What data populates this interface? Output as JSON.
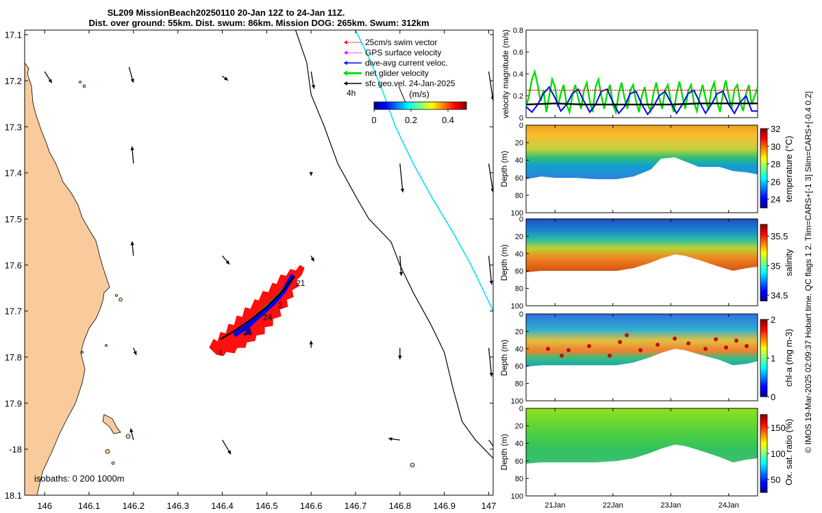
{
  "title": {
    "line1": "SL209 MissionBeach20250110 20-Jan 12Z to 24-Jan 11Z.",
    "line2": "Dist. over ground: 55km. Dist. swum: 86km. Mission DOG: 265km. Swum: 312km"
  },
  "side_note": "© IMOS 19-Mar-2025 02:09:37 Hobart time. QC flags 1  2. Tlim=CARS+[-1 3] Slim=CARS+[-0.4 0.2]",
  "colors": {
    "land": "#f9cb9c",
    "swim_vector": "#ff0000",
    "gps_velocity": "#ff00ff",
    "dive_current": "#0000ff",
    "net_velocity": "#00dd00",
    "geo_velocity": "#000000",
    "isobath_200": "#000000",
    "isobath_1000": "#00e5ee"
  },
  "chart_data": [
    {
      "type": "map",
      "title": "SL209 MissionBeach20250110 20-Jan 12Z to 24-Jan 11Z.",
      "xlabel": "",
      "ylabel": "",
      "xlim": [
        145.955,
        147.01
      ],
      "ylim": [
        -18.1,
        -17.09
      ],
      "x_ticks": [
        146,
        146.1,
        146.2,
        146.3,
        146.4,
        146.5,
        146.6,
        146.7,
        146.8,
        146.9,
        147
      ],
      "x_tick_labels": [
        "146",
        "146.1",
        "146.2",
        "146.3",
        "146.4",
        "146.5",
        "146.6",
        "146.7",
        "146.8",
        "146.9",
        "147"
      ],
      "y_ticks": [
        -17.1,
        -17.2,
        -17.3,
        -17.4,
        -17.5,
        -17.6,
        -17.7,
        -17.8,
        -17.9,
        -18,
        -18.1
      ],
      "y_tick_labels": [
        "17.1",
        "17.2",
        "17.3",
        "17.4",
        "17.5",
        "17.6",
        "17.7",
        "17.8",
        "17.9",
        "-18",
        "18.1"
      ],
      "legend": {
        "placement": "top-right",
        "entries": [
          "25cm/s swim vector",
          "GPS surface velocity",
          "dive-avg current veloc.",
          "net glider velocity",
          "sfc geo.vel. 24-Jan-2025"
        ],
        "sub_label": "4h"
      },
      "colorbar": {
        "label": "(m/s)",
        "range": [
          0,
          0.5
        ],
        "ticks": [
          "0",
          "0.2",
          "0.4"
        ]
      },
      "isobaths_label": "isobaths: 0   200   1000m",
      "isobath_200": [
        [
          146.565,
          -17.09
        ],
        [
          146.59,
          -17.16
        ],
        [
          146.6,
          -17.23
        ],
        [
          146.63,
          -17.3
        ],
        [
          146.66,
          -17.38
        ],
        [
          146.7,
          -17.45
        ],
        [
          146.73,
          -17.5
        ],
        [
          146.78,
          -17.55
        ],
        [
          146.8,
          -17.6
        ],
        [
          146.83,
          -17.66
        ],
        [
          146.87,
          -17.73
        ],
        [
          146.9,
          -17.79
        ],
        [
          146.92,
          -17.87
        ],
        [
          146.94,
          -17.94
        ],
        [
          146.97,
          -17.98
        ],
        [
          147.01,
          -18.02
        ]
      ],
      "isobath_1000": [
        [
          146.7,
          -17.09
        ],
        [
          146.73,
          -17.15
        ],
        [
          146.76,
          -17.22
        ],
        [
          146.79,
          -17.3
        ],
        [
          146.83,
          -17.38
        ],
        [
          146.87,
          -17.45
        ],
        [
          146.92,
          -17.53
        ],
        [
          146.96,
          -17.6
        ],
        [
          147.0,
          -17.68
        ],
        [
          147.01,
          -17.7
        ]
      ],
      "track_start": [
        146.39,
        -17.77
      ],
      "track_end": [
        146.58,
        -17.62
      ],
      "day_labels": [
        {
          "text": "21",
          "lon": 146.59,
          "lat": -17.64
        },
        {
          "text": "2",
          "lon": 146.55,
          "lat": -17.7
        },
        {
          "text": "24",
          "lon": 146.5,
          "lat": -17.73
        },
        {
          "text": "25",
          "lon": 146.44,
          "lat": -17.755
        }
      ],
      "geo_vectors": [
        {
          "lon": 146.0,
          "lat": -17.18,
          "u": 0.05,
          "v": -0.08
        },
        {
          "lon": 146.19,
          "lat": -17.17,
          "u": 0.03,
          "v": -0.11
        },
        {
          "lon": 146.4,
          "lat": -17.19,
          "u": 0.04,
          "v": -0.03
        },
        {
          "lon": 146.6,
          "lat": -17.18,
          "u": 0.02,
          "v": -0.12
        },
        {
          "lon": 147.0,
          "lat": -17.18,
          "u": 0.03,
          "v": -0.2
        },
        {
          "lon": 146.2,
          "lat": -17.38,
          "u": -0.01,
          "v": 0.12
        },
        {
          "lon": 146.6,
          "lat": -17.4,
          "u": 0.0,
          "v": -0.02
        },
        {
          "lon": 146.8,
          "lat": -17.38,
          "u": 0.02,
          "v": -0.2
        },
        {
          "lon": 147.0,
          "lat": -17.38,
          "u": 0.03,
          "v": -0.2
        },
        {
          "lon": 146.2,
          "lat": -17.58,
          "u": -0.01,
          "v": 0.1
        },
        {
          "lon": 146.4,
          "lat": -17.58,
          "u": 0.05,
          "v": -0.06
        },
        {
          "lon": 146.6,
          "lat": -17.58,
          "u": 0.02,
          "v": -0.04
        },
        {
          "lon": 146.8,
          "lat": -17.58,
          "u": 0.01,
          "v": -0.14
        },
        {
          "lon": 147.0,
          "lat": -17.58,
          "u": 0.02,
          "v": -0.2
        },
        {
          "lon": 146.2,
          "lat": -17.78,
          "u": 0.02,
          "v": -0.05
        },
        {
          "lon": 146.6,
          "lat": -17.78,
          "u": 0.0,
          "v": 0.05
        },
        {
          "lon": 146.8,
          "lat": -17.78,
          "u": 0.0,
          "v": -0.08
        },
        {
          "lon": 147.0,
          "lat": -17.78,
          "u": 0.02,
          "v": -0.2
        },
        {
          "lon": 146.2,
          "lat": -17.98,
          "u": -0.02,
          "v": 0.08
        },
        {
          "lon": 146.4,
          "lat": -17.98,
          "u": 0.06,
          "v": -0.1
        },
        {
          "lon": 146.8,
          "lat": -17.98,
          "u": -0.08,
          "v": 0.01
        },
        {
          "lon": 147.0,
          "lat": -17.98,
          "u": 0.08,
          "v": -0.11
        }
      ]
    },
    {
      "type": "line",
      "ylabel": "velocity magnitude (m/s)",
      "ylim": [
        0,
        0.8
      ],
      "y_ticks": [
        0,
        0.2,
        0.4,
        0.6,
        0.8
      ],
      "y_tick_labels": [
        "0",
        "0.2",
        "0.4",
        "0.6",
        "0.8"
      ],
      "xlim": [
        20.5,
        24.5
      ],
      "series": [
        {
          "name": "net glider velocity",
          "x": [
            20.5,
            20.55,
            20.6,
            20.65,
            20.7,
            20.75,
            20.8,
            20.85,
            20.9,
            20.95,
            21.0,
            21.05,
            21.1,
            21.15,
            21.2,
            21.25,
            21.3,
            21.35,
            21.4,
            21.45,
            21.5,
            21.55,
            21.6,
            21.65,
            21.7,
            21.75,
            21.8,
            21.85,
            21.9,
            21.95,
            22.0,
            22.05,
            22.1,
            22.15,
            22.2,
            22.25,
            22.3,
            22.35,
            22.4,
            22.45,
            22.5,
            22.55,
            22.6,
            22.65,
            22.7,
            22.75,
            22.8,
            22.85,
            22.9,
            22.95,
            23.0,
            23.05,
            23.1,
            23.15,
            23.2,
            23.25,
            23.3,
            23.35,
            23.4,
            23.45,
            23.5,
            23.55,
            23.6,
            23.65,
            23.7,
            23.75,
            23.8,
            23.85,
            23.9,
            23.95,
            24.0,
            24.05,
            24.1,
            24.15,
            24.2,
            24.25,
            24.3,
            24.35,
            24.4,
            24.45,
            24.5
          ],
          "values": [
            0.1,
            0.2,
            0.35,
            0.42,
            0.3,
            0.15,
            0.25,
            0.05,
            0.2,
            0.35,
            0.28,
            0.1,
            0.22,
            0.3,
            0.12,
            0.05,
            0.2,
            0.3,
            0.18,
            0.08,
            0.25,
            0.32,
            0.15,
            0.05,
            0.28,
            0.35,
            0.2,
            0.08,
            0.22,
            0.3,
            0.12,
            0.05,
            0.22,
            0.32,
            0.18,
            0.08,
            0.25,
            0.3,
            0.15,
            0.05,
            0.2,
            0.28,
            0.12,
            0.06,
            0.22,
            0.32,
            0.18,
            0.08,
            0.25,
            0.3,
            0.15,
            0.05,
            0.22,
            0.33,
            0.2,
            0.08,
            0.24,
            0.3,
            0.14,
            0.06,
            0.2,
            0.3,
            0.18,
            0.07,
            0.25,
            0.32,
            0.15,
            0.05,
            0.22,
            0.34,
            0.2,
            0.08,
            0.26,
            0.3,
            0.14,
            0.06,
            0.22,
            0.3,
            0.12,
            0.2,
            0.28
          ]
        },
        {
          "name": "dive-avg current veloc.",
          "x": [
            20.5,
            20.6,
            20.7,
            20.8,
            20.9,
            21.0,
            21.1,
            21.2,
            21.3,
            21.4,
            21.5,
            21.6,
            21.7,
            21.8,
            21.9,
            22.0,
            22.1,
            22.2,
            22.3,
            22.4,
            22.5,
            22.6,
            22.7,
            22.8,
            22.9,
            23.0,
            23.1,
            23.2,
            23.3,
            23.4,
            23.5,
            23.6,
            23.7,
            23.8,
            23.9,
            24.0,
            24.1,
            24.2,
            24.3,
            24.4,
            24.5
          ],
          "values": [
            0.1,
            0.05,
            0.12,
            0.22,
            0.28,
            0.18,
            0.06,
            0.12,
            0.22,
            0.26,
            0.15,
            0.05,
            0.12,
            0.24,
            0.26,
            0.14,
            0.04,
            0.1,
            0.22,
            0.24,
            0.12,
            0.03,
            0.1,
            0.2,
            0.24,
            0.14,
            0.04,
            0.12,
            0.22,
            0.25,
            0.14,
            0.04,
            0.12,
            0.22,
            0.24,
            0.12,
            0.04,
            0.14,
            0.2,
            0.06,
            0.06
          ]
        },
        {
          "name": "sfc geo.vel.",
          "x": [
            20.5,
            21.0,
            21.5,
            22.0,
            22.5,
            23.0,
            23.5,
            24.0,
            24.5
          ],
          "values": [
            0.12,
            0.13,
            0.12,
            0.12,
            0.12,
            0.12,
            0.13,
            0.13,
            0.13
          ]
        },
        {
          "name": "25cm/s swim vector",
          "x": [
            20.5,
            24.5
          ],
          "values": [
            0.25,
            0.25
          ]
        }
      ]
    },
    {
      "type": "heatmap",
      "ylabel": "Depth (m)",
      "colorbar_label": "temperature (°C)",
      "ylim": [
        0,
        100
      ],
      "y_ticks": [
        0,
        20,
        40,
        60,
        80,
        100
      ],
      "y_tick_labels": [
        "0",
        "20",
        "40",
        "60",
        "80",
        "100"
      ],
      "clim": [
        23,
        32
      ],
      "colorbar_ticks": [
        "24",
        "26",
        "28",
        "30",
        "32"
      ],
      "colorbar_values": [
        24,
        26,
        28,
        30,
        32
      ]
    },
    {
      "type": "heatmap",
      "ylabel": "Depth (m)",
      "colorbar_label": "salinity",
      "ylim": [
        0,
        100
      ],
      "y_ticks": [
        0,
        20,
        40,
        60,
        80,
        100
      ],
      "y_tick_labels": [
        "0",
        "20",
        "40",
        "60",
        "80",
        "100"
      ],
      "clim": [
        34.4,
        35.7
      ],
      "colorbar_ticks": [
        "34.5",
        "35",
        "35.5"
      ],
      "colorbar_values": [
        34.5,
        35,
        35.5
      ]
    },
    {
      "type": "heatmap",
      "ylabel": "Depth (m)",
      "colorbar_label": "chl-a (mg m-3)",
      "ylim": [
        0,
        100
      ],
      "y_ticks": [
        0,
        20,
        40,
        60,
        80,
        100
      ],
      "y_tick_labels": [
        "0",
        "20",
        "40",
        "60",
        "80",
        "100"
      ],
      "clim": [
        0,
        2
      ],
      "colorbar_ticks": [
        "0",
        "1",
        "2"
      ],
      "colorbar_values": [
        0,
        1,
        2
      ]
    },
    {
      "type": "heatmap",
      "ylabel": "Depth (m)",
      "colorbar_label": "Ox. sat. ratio (%)",
      "ylim": [
        0,
        100
      ],
      "y_ticks": [
        0,
        20,
        40,
        60,
        80,
        100
      ],
      "y_tick_labels": [
        "0",
        "20",
        "40",
        "60",
        "80",
        "100"
      ],
      "clim": [
        25,
        175
      ],
      "colorbar_ticks": [
        "50",
        "100",
        "150"
      ],
      "colorbar_values": [
        50,
        100,
        150
      ],
      "x_ticks": [
        21,
        22,
        23,
        24
      ],
      "x_tick_labels": [
        "21Jan",
        "22Jan",
        "23Jan",
        "24Jan"
      ]
    }
  ]
}
